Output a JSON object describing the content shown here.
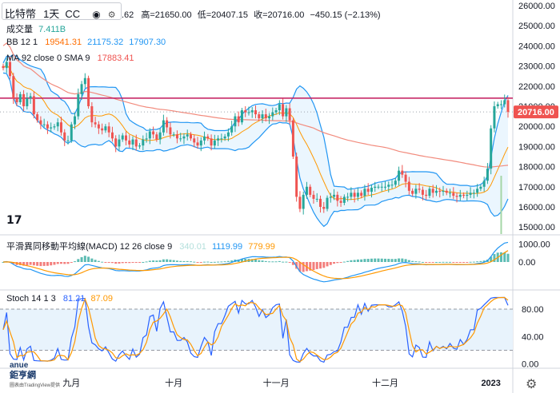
{
  "header": {
    "symbol": "比特幣",
    "interval": "1天",
    "exchange": "CC",
    "ohlc_open_partial": ".62",
    "high": "高=21650.00",
    "low": "低=20407.15",
    "close": "收=20716.00",
    "change": "−450.15 (−2.13%)"
  },
  "indicators": {
    "volume_label": "成交量",
    "volume_value": "7.411B",
    "bb_label": "BB 12 1",
    "bb_values": [
      "19541.31",
      "21175.32",
      "17907.30"
    ],
    "ma_label": "MA 92 close 0 SMA 9",
    "ma_value": "17883.41",
    "macd_label": "平滑異同移動平均線(MACD) 12 26 close 9",
    "macd_values": [
      "340.01",
      "1119.99",
      "779.99"
    ],
    "stoch_label": "Stoch 14 1 3",
    "stoch_values": [
      "81.21",
      "87.09"
    ]
  },
  "price_badge": "20716.00",
  "watermark": {
    "tv": "17",
    "anue_line1": "anue",
    "anue_line2": "鉅亨網",
    "anue_line3": "圖表由TradingView提供"
  },
  "colors": {
    "up": "#26a69a",
    "down": "#ef5350",
    "bb": "#2196f3",
    "bb_fill": "#e3f2fd",
    "ma": "#f28b7d",
    "resist": "#c2185b",
    "macd": "#2196f3",
    "signal": "#ff9800",
    "stoch_k": "#2962ff",
    "stoch_d": "#ff9800",
    "stoch_fill": "#e8f3fc"
  },
  "chart_data": {
    "type": "candlestick",
    "price_axis": {
      "ticks": [
        26000,
        25000,
        24000,
        23000,
        22000,
        21000,
        20000,
        19000,
        18000,
        17000,
        16000,
        15000
      ],
      "ylim": [
        14650,
        26200
      ]
    },
    "macd_axis": {
      "ticks": [
        "1000.00",
        "0.00"
      ],
      "ylim": [
        -1500,
        1500
      ]
    },
    "stoch_axis": {
      "ticks": [
        "80.00",
        "40.00",
        "0.00"
      ],
      "ylim": [
        -5,
        108
      ],
      "band": [
        20,
        80
      ]
    },
    "x_labels": [
      "九月",
      "十月",
      "十一月",
      "十二月",
      "2023"
    ],
    "x_label_index": [
      20,
      50,
      80,
      112,
      143
    ],
    "resistance_level": 21400,
    "last_price": 20716,
    "closes": [
      22900,
      23200,
      22500,
      21400,
      21200,
      21600,
      21000,
      21400,
      21500,
      20600,
      20300,
      20100,
      20100,
      19900,
      19950,
      20000,
      20200,
      19700,
      19300,
      19300,
      20100,
      20500,
      21600,
      22100,
      22400,
      21000,
      20200,
      20100,
      19900,
      19800,
      20000,
      19700,
      19400,
      19000,
      19350,
      19550,
      19300,
      19100,
      19350,
      19000,
      19050,
      19350,
      19400,
      19750,
      19600,
      19350,
      19700,
      20300,
      19950,
      19600,
      19600,
      19400,
      19400,
      19500,
      19600,
      19400,
      19200,
      19050,
      19300,
      19500,
      19400,
      19050,
      19300,
      19400,
      19400,
      19500,
      19700,
      20000,
      20500,
      20200,
      20800,
      20700,
      20700,
      20800,
      20600,
      20400,
      20600,
      20400,
      20500,
      20700,
      20800,
      21100,
      20500,
      20900,
      20300,
      18500,
      16500,
      15900,
      16600,
      17000,
      16600,
      16400,
      16400,
      16000,
      15900,
      16450,
      16500,
      16600,
      16300,
      16200,
      16500,
      16500,
      16700,
      16500,
      16700,
      16550,
      16900,
      16750,
      16950,
      17000,
      17000,
      17000,
      17000,
      17100,
      17100,
      17300,
      17800,
      17600,
      17250,
      16800,
      16650,
      16900,
      16850,
      16600,
      16550,
      16900,
      16700,
      16800,
      16750,
      16800,
      16700,
      16700,
      16550,
      16500,
      16600,
      16550,
      16600,
      16700,
      16700,
      16900,
      17000,
      17300,
      17900,
      19900,
      21000,
      21100,
      21100,
      21300,
      20716
    ]
  }
}
